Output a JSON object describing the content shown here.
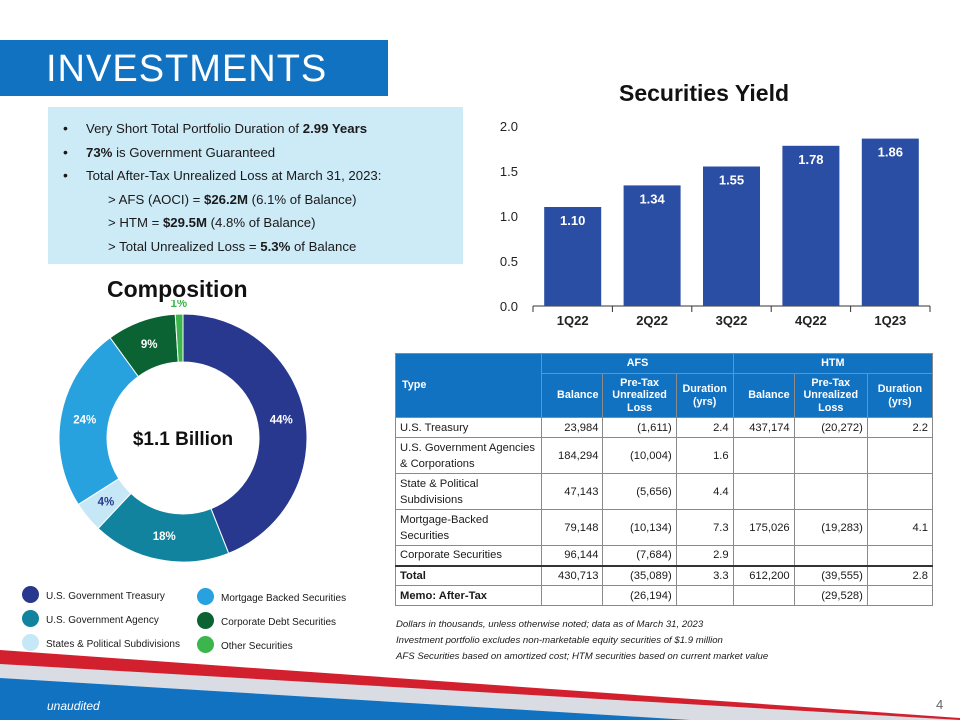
{
  "header": {
    "title": "INVESTMENTS"
  },
  "summary": {
    "line1": {
      "pre": "Very Short Total Portfolio Duration of ",
      "bold": "2.99 Years"
    },
    "line2": {
      "bold": "73%",
      "post": " is Government Guaranteed"
    },
    "line3": {
      "text": "Total After-Tax Unrealized Loss at March 31, 2023:"
    },
    "line4": {
      "pre": "> AFS (AOCI) = ",
      "bold": "$26.2M",
      "post": " (6.1% of Balance)"
    },
    "line5": {
      "pre": "> HTM = ",
      "bold": "$29.5M",
      "post": " (4.8% of Balance)"
    },
    "line6": {
      "pre": "> Total Unrealized Loss = ",
      "bold": "5.3%",
      "post": " of Balance"
    }
  },
  "colors": {
    "brand_blue": "#1272c2",
    "bar_navy": "#2a4ea3",
    "seg_treasury": "#28388f",
    "seg_agency": "#11839f",
    "seg_states": "#c6e8f6",
    "seg_mbs": "#27a2de",
    "seg_corporate": "#0b6232",
    "seg_other": "#3cb64c",
    "table_header": "#1272c2"
  },
  "chart_data": [
    {
      "type": "bar",
      "title": "Securities Yield",
      "categories": [
        "1Q22",
        "2Q22",
        "3Q22",
        "4Q22",
        "1Q23"
      ],
      "values": [
        1.1,
        1.34,
        1.55,
        1.78,
        1.86
      ],
      "data_labels": [
        "1.10",
        "1.34",
        "1.55",
        "1.78",
        "1.86"
      ],
      "y_ticks": [
        "0.0",
        "0.5",
        "1.0",
        "1.5",
        "2.0"
      ],
      "ylim": [
        0,
        2.0
      ],
      "grid": false
    },
    {
      "type": "pie",
      "title": "Composition",
      "center_label": "$1.1 Billion",
      "donut": true,
      "segments": [
        {
          "name": "U.S. Government Treasury",
          "value": 44,
          "label": "44%",
          "color": "#28388f"
        },
        {
          "name": "U.S. Government Agency",
          "value": 18,
          "label": "18%",
          "color": "#11839f"
        },
        {
          "name": "States & Political Subdivisions",
          "value": 4,
          "label": "4%",
          "color": "#c6e8f6"
        },
        {
          "name": "Mortgage Backed Securities",
          "value": 24,
          "label": "24%",
          "color": "#27a2de"
        },
        {
          "name": "Corporate Debt Securities",
          "value": 9,
          "label": "9%",
          "color": "#0b6232"
        },
        {
          "name": "Other Securities",
          "value": 1,
          "label": "1%",
          "color": "#3cb64c"
        }
      ],
      "legend_placement": "bottom"
    },
    {
      "type": "table",
      "headers": {
        "type": "Type",
        "afs": "AFS",
        "htm": "HTM",
        "balance": "Balance",
        "pretax_line1": "Pre-Tax",
        "pretax_line2": "Unrealized",
        "pretax_line3": "Loss",
        "duration_line1": "Duration",
        "duration_line2": "(yrs)"
      },
      "rows": [
        {
          "type": "U.S. Treasury",
          "afs_balance": "23,984",
          "afs_loss": "(1,611)",
          "afs_duration": "2.4",
          "htm_balance": "437,174",
          "htm_loss": "(20,272)",
          "htm_duration": "2.2"
        },
        {
          "type": "U.S. Government Agencies & Corporations",
          "afs_balance": "184,294",
          "afs_loss": "(10,004)",
          "afs_duration": "1.6",
          "htm_balance": "",
          "htm_loss": "",
          "htm_duration": ""
        },
        {
          "type": "State & Political Subdivisions",
          "afs_balance": "47,143",
          "afs_loss": "(5,656)",
          "afs_duration": "4.4",
          "htm_balance": "",
          "htm_loss": "",
          "htm_duration": ""
        },
        {
          "type": "Mortgage-Backed Securities",
          "afs_balance": "79,148",
          "afs_loss": "(10,134)",
          "afs_duration": "7.3",
          "htm_balance": "175,026",
          "htm_loss": "(19,283)",
          "htm_duration": "4.1"
        },
        {
          "type": "Corporate Securities",
          "afs_balance": "96,144",
          "afs_loss": "(7,684)",
          "afs_duration": "2.9",
          "htm_balance": "",
          "htm_loss": "",
          "htm_duration": ""
        },
        {
          "type": "Total",
          "afs_balance": "430,713",
          "afs_loss": "(35,089)",
          "afs_duration": "3.3",
          "htm_balance": "612,200",
          "htm_loss": "(39,555)",
          "htm_duration": "2.8"
        },
        {
          "type": "Memo: After-Tax",
          "afs_balance": "",
          "afs_loss": "(26,194)",
          "afs_duration": "",
          "htm_balance": "",
          "htm_loss": "(29,528)",
          "htm_duration": ""
        }
      ]
    }
  ],
  "notes": [
    "Dollars in thousands, unless otherwise noted; data as of March 31, 2023",
    "Investment portfolio excludes non-marketable equity securities of $1.9 million",
    "AFS Securities based on amortized cost; HTM securities based on current market value"
  ],
  "footer": {
    "label": "unaudited",
    "page_number": "4"
  }
}
